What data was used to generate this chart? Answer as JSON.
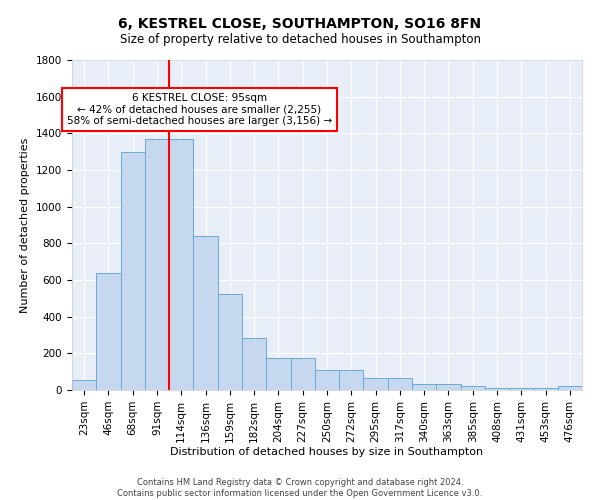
{
  "title": "6, KESTREL CLOSE, SOUTHAMPTON, SO16 8FN",
  "subtitle": "Size of property relative to detached houses in Southampton",
  "xlabel": "Distribution of detached houses by size in Southampton",
  "ylabel": "Number of detached properties",
  "bar_labels": [
    "23sqm",
    "46sqm",
    "68sqm",
    "91sqm",
    "114sqm",
    "136sqm",
    "159sqm",
    "182sqm",
    "204sqm",
    "227sqm",
    "250sqm",
    "272sqm",
    "295sqm",
    "317sqm",
    "340sqm",
    "363sqm",
    "385sqm",
    "408sqm",
    "431sqm",
    "453sqm",
    "476sqm"
  ],
  "bar_values": [
    55,
    640,
    1300,
    1370,
    1370,
    840,
    525,
    285,
    175,
    175,
    110,
    110,
    65,
    65,
    35,
    35,
    20,
    10,
    10,
    10,
    20
  ],
  "bar_color": "#c5d8f0",
  "bar_edge_color": "#6aaad4",
  "background_color": "#e8eef8",
  "grid_color": "#ffffff",
  "vline_color": "red",
  "annotation_text": "6 KESTREL CLOSE: 95sqm\n← 42% of detached houses are smaller (2,255)\n58% of semi-detached houses are larger (3,156) →",
  "annotation_box_color": "white",
  "annotation_box_edge": "red",
  "ylim": [
    0,
    1800
  ],
  "yticks": [
    0,
    200,
    400,
    600,
    800,
    1000,
    1200,
    1400,
    1600,
    1800
  ],
  "footer_line1": "Contains HM Land Registry data © Crown copyright and database right 2024.",
  "footer_line2": "Contains public sector information licensed under the Open Government Licence v3.0.",
  "title_fontsize": 10,
  "subtitle_fontsize": 8.5,
  "xlabel_fontsize": 8,
  "ylabel_fontsize": 8,
  "tick_fontsize": 7.5,
  "annotation_fontsize": 7.5,
  "footer_fontsize": 6
}
